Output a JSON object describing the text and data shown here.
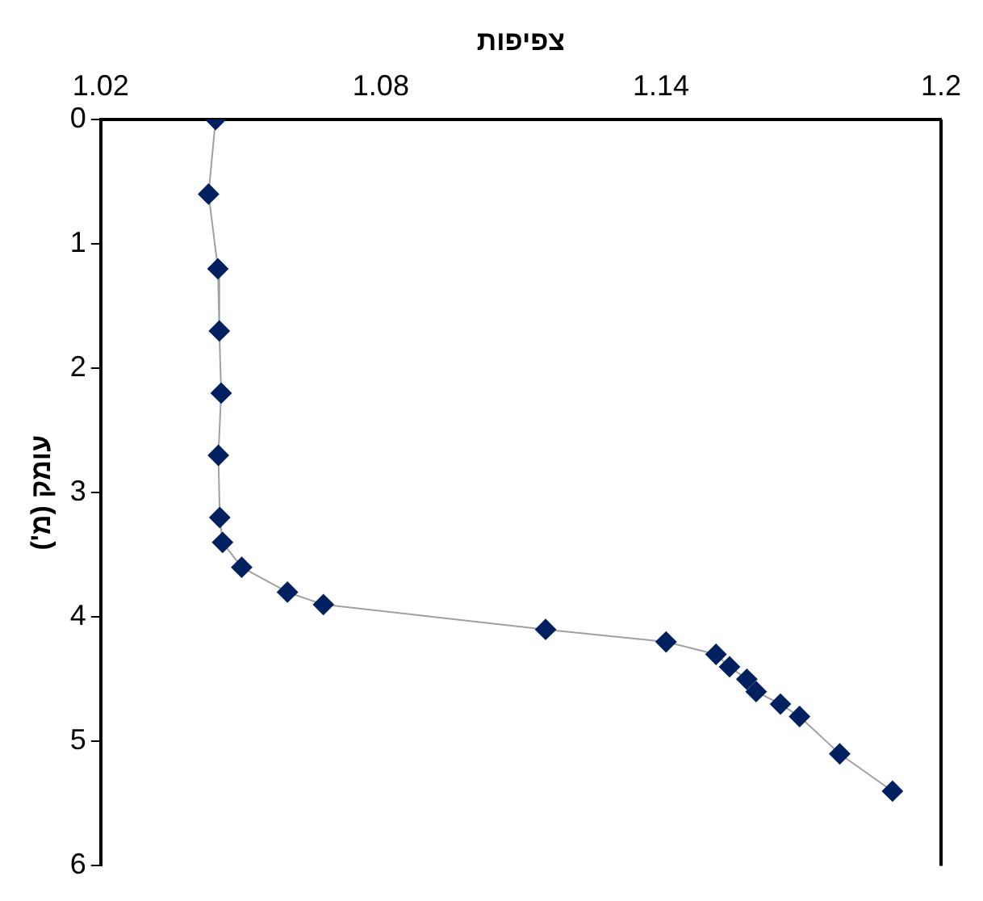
{
  "chart_data": {
    "type": "line",
    "xlabel": "צפיפות",
    "ylabel": "עומק (מ')",
    "x": [
      1.0446,
      1.0431,
      1.0451,
      1.0454,
      1.0458,
      1.0452,
      1.0455,
      1.0461,
      1.0502,
      1.06,
      1.0677,
      1.1153,
      1.1411,
      1.1518,
      1.1547,
      1.1584,
      1.1604,
      1.1656,
      1.1697,
      1.1783,
      1.1896
    ],
    "series": [
      {
        "color": "#002060",
        "values": [
          0,
          0.6,
          1.2,
          1.7,
          2.2,
          2.7,
          3.2,
          3.4,
          3.6,
          3.8,
          3.9,
          4.1,
          4.2,
          4.3,
          4.4,
          4.5,
          4.6,
          4.7,
          4.8,
          5.1,
          5.4
        ]
      }
    ],
    "xlim": [
      1.02,
      1.2
    ],
    "xticks": [
      1.02,
      1.08,
      1.14,
      1.2
    ],
    "ylim": [
      6,
      0
    ],
    "yticks": [
      0,
      1,
      2,
      3,
      4,
      5,
      6
    ],
    "grid": false,
    "legend": false,
    "marker": "diamond",
    "line_style": "solid"
  }
}
